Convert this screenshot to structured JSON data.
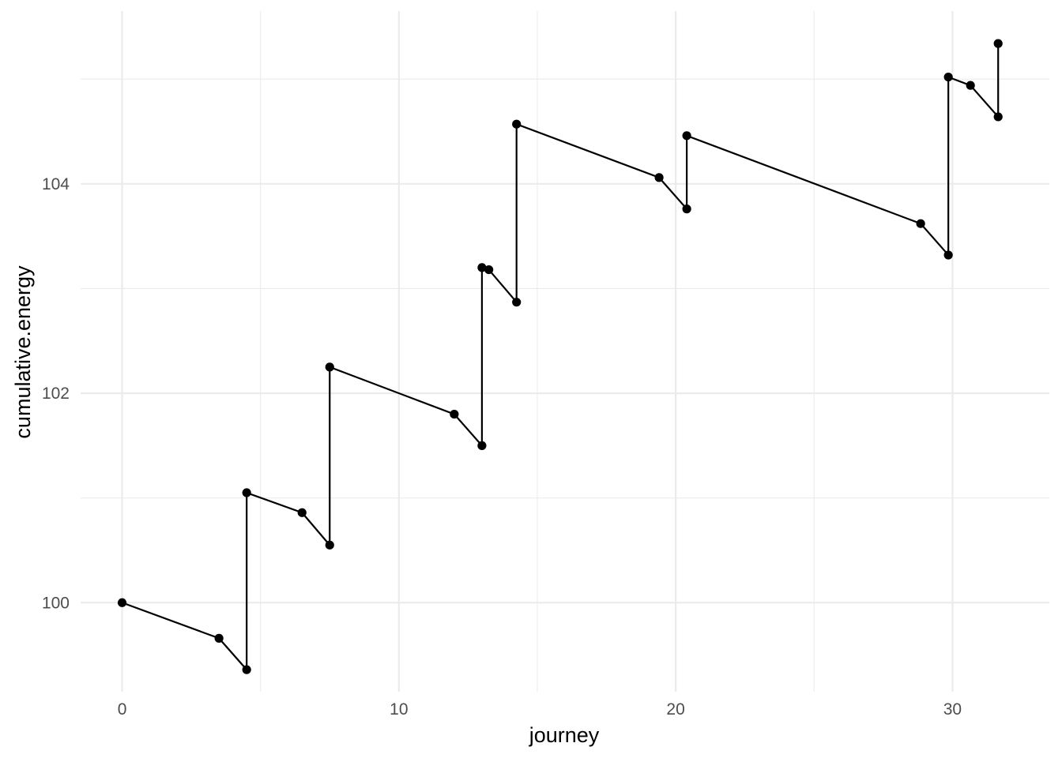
{
  "chart_data": {
    "type": "line",
    "title": "",
    "xlabel": "journey",
    "ylabel": "cumulative.energy",
    "xlim": [
      -1.5,
      33.5
    ],
    "ylim": [
      99.15,
      105.65
    ],
    "x_ticks": [
      0,
      10,
      20,
      30
    ],
    "x_minor_ticks": [
      5,
      15,
      25
    ],
    "y_ticks": [
      100,
      102,
      104
    ],
    "y_minor_ticks": [
      101,
      103,
      105
    ],
    "x_tick_labels": [
      "0",
      "10",
      "20",
      "30"
    ],
    "y_tick_labels": [
      "100",
      "102",
      "104"
    ],
    "grid": true,
    "markers": true,
    "colors": {
      "series": "#000000",
      "grid": "#ebebeb",
      "tick_text": "#4d4d4d",
      "background": "#ffffff"
    },
    "series": [
      {
        "points": [
          {
            "x": 0.0,
            "y": 100.0
          },
          {
            "x": 3.5,
            "y": 99.66
          },
          {
            "x": 4.5,
            "y": 99.36
          },
          {
            "x": 4.5,
            "y": 101.05
          },
          {
            "x": 6.5,
            "y": 100.86
          },
          {
            "x": 7.5,
            "y": 100.55
          },
          {
            "x": 7.5,
            "y": 102.25
          },
          {
            "x": 12.0,
            "y": 101.8
          },
          {
            "x": 13.0,
            "y": 101.5
          },
          {
            "x": 13.0,
            "y": 103.2
          },
          {
            "x": 13.25,
            "y": 103.18
          },
          {
            "x": 14.25,
            "y": 102.87
          },
          {
            "x": 14.25,
            "y": 104.57
          },
          {
            "x": 19.4,
            "y": 104.06
          },
          {
            "x": 20.4,
            "y": 103.76
          },
          {
            "x": 20.4,
            "y": 104.46
          },
          {
            "x": 28.85,
            "y": 103.62
          },
          {
            "x": 29.85,
            "y": 103.32
          },
          {
            "x": 29.85,
            "y": 105.02
          },
          {
            "x": 30.65,
            "y": 104.94
          },
          {
            "x": 31.65,
            "y": 104.64
          },
          {
            "x": 31.65,
            "y": 105.34
          }
        ]
      }
    ]
  }
}
